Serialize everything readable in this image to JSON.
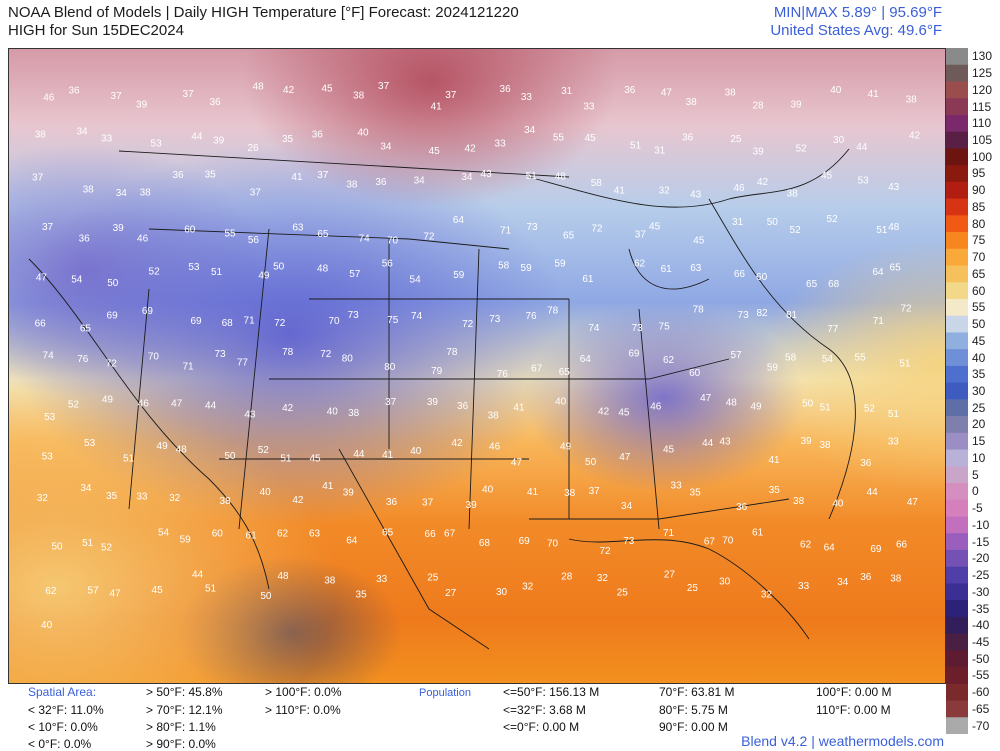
{
  "header": {
    "title": "NOAA Blend of Models | Daily HIGH Temperature [°F] Forecast: 2024121220",
    "subtitle": "HIGH for Sun 15DEC2024",
    "minmax": "MIN|MAX 5.89° | 95.69°F",
    "us_avg": "United States Avg: 49.6°F"
  },
  "colorbar": {
    "ticks": [
      "130",
      "125",
      "120",
      "115",
      "110",
      "105",
      "100",
      "95",
      "90",
      "85",
      "80",
      "75",
      "70",
      "65",
      "60",
      "55",
      "50",
      "45",
      "40",
      "35",
      "30",
      "25",
      "20",
      "15",
      "10",
      "5",
      "0",
      "-5",
      "-10",
      "-15",
      "-20",
      "-25",
      "-30",
      "-35",
      "-40",
      "-45",
      "-50",
      "-55",
      "-60",
      "-65",
      "-70"
    ],
    "colors": [
      "#8a8a8a",
      "#6f5a5a",
      "#9a4d4d",
      "#8a3a55",
      "#7a2a6a",
      "#5a1f44",
      "#6e1410",
      "#8a1a0e",
      "#b11d10",
      "#d63412",
      "#f05a14",
      "#f7861e",
      "#f9a93a",
      "#f6c15c",
      "#f2d889",
      "#f4e9c8",
      "#c9d6e8",
      "#8fb0de",
      "#6f8fd8",
      "#4d70cf",
      "#3e5cc0",
      "#5d6fa6",
      "#7f7fae",
      "#9b8ec4",
      "#b9b2d8",
      "#c9a5c9",
      "#d48ebf",
      "#d67fbd",
      "#c270be",
      "#9a5fbd",
      "#7452b5",
      "#503fa8",
      "#3c2f93",
      "#2c2378",
      "#321e5a",
      "#4a1f44",
      "#5e1c33",
      "#6a1f2a",
      "#7a2a2a",
      "#8a3a3a",
      "#aaaaaa"
    ]
  },
  "stats": {
    "spatial_area_label": "Spatial Area:",
    "lt32": "< 32°F: 11.0%",
    "lt10": "< 10°F: 0.0%",
    "lt0": "< 0°F: 0.0%",
    "gt50": "> 50°F: 45.8%",
    "gt70": "> 70°F: 12.1%",
    "gt80": "> 80°F: 1.1%",
    "gt90": "> 90°F: 0.0%",
    "gt100": "> 100°F: 0.0%",
    "gt110": "> 110°F: 0.0%",
    "population_label": "Population",
    "pop_le50": "<=50°F: 156.13 M",
    "pop_le32": "<=32°F: 3.68 M",
    "pop_le0": "<=0°F: 0.00 M",
    "pop_70": "70°F: 63.81 M",
    "pop_80": "80°F: 5.75 M",
    "pop_90": "90°F: 0.00 M",
    "pop_100": "100°F: 0.00 M",
    "pop_110": "110°F: 0.00 M"
  },
  "footer": "Blend v4.2 | weathermodels.com",
  "temperature_labels": [
    "46",
    "36",
    "37",
    "39",
    "37",
    "36",
    "48",
    "42",
    "45",
    "38",
    "37",
    "41",
    "37",
    "36",
    "33",
    "31",
    "33",
    "36",
    "47",
    "38",
    "38",
    "28",
    "39",
    "40",
    "41",
    "38",
    "38",
    "34",
    "33",
    "53",
    "44",
    "39",
    "26",
    "35",
    "36",
    "40",
    "34",
    "45",
    "42",
    "33",
    "34",
    "55",
    "45",
    "51",
    "31",
    "36",
    "25",
    "39",
    "52",
    "30",
    "44",
    "42",
    "37",
    "38",
    "34",
    "38",
    "36",
    "35",
    "37",
    "41",
    "37",
    "38",
    "36",
    "34",
    "34",
    "43",
    "51",
    "48",
    "58",
    "41",
    "32",
    "43",
    "46",
    "42",
    "38",
    "45",
    "53",
    "43",
    "37",
    "36",
    "39",
    "46",
    "60",
    "55",
    "56",
    "63",
    "65",
    "74",
    "70",
    "72",
    "64",
    "71",
    "73",
    "65",
    "72",
    "37",
    "45",
    "45",
    "31",
    "50",
    "52",
    "52",
    "51",
    "48",
    "47",
    "54",
    "50",
    "52",
    "53",
    "51",
    "49",
    "50",
    "48",
    "57",
    "56",
    "54",
    "59",
    "58",
    "59",
    "59",
    "61",
    "62",
    "61",
    "63",
    "66",
    "60",
    "65",
    "68",
    "64",
    "65",
    "66",
    "65",
    "69",
    "69",
    "69",
    "68",
    "71",
    "72",
    "70",
    "73",
    "75",
    "74",
    "72",
    "73",
    "76",
    "78",
    "74",
    "73",
    "75",
    "78",
    "73",
    "82",
    "81",
    "77",
    "71",
    "72",
    "74",
    "76",
    "72",
    "70",
    "71",
    "73",
    "77",
    "78",
    "72",
    "80",
    "80",
    "79",
    "78",
    "76",
    "67",
    "65",
    "64",
    "69",
    "62",
    "60",
    "57",
    "59",
    "58",
    "54",
    "55",
    "51",
    "53",
    "52",
    "49",
    "46",
    "47",
    "44",
    "43",
    "42",
    "40",
    "38",
    "37",
    "39",
    "36",
    "38",
    "41",
    "40",
    "42",
    "45",
    "46",
    "47",
    "48",
    "49",
    "50",
    "51",
    "52",
    "51",
    "53",
    "53",
    "51",
    "49",
    "48",
    "50",
    "52",
    "51",
    "45",
    "44",
    "41",
    "40",
    "42",
    "46",
    "47",
    "49",
    "50",
    "47",
    "45",
    "44",
    "43",
    "41",
    "39",
    "38",
    "36",
    "33",
    "32",
    "34",
    "35",
    "33",
    "32",
    "38",
    "40",
    "42",
    "41",
    "39",
    "36",
    "37",
    "39",
    "40",
    "41",
    "38",
    "37",
    "34",
    "33",
    "35",
    "36",
    "35",
    "38",
    "40",
    "44",
    "47",
    "50",
    "51",
    "52",
    "54",
    "59",
    "60",
    "61",
    "62",
    "63",
    "64",
    "65",
    "66",
    "67",
    "68",
    "69",
    "70",
    "72",
    "73",
    "71",
    "67",
    "70",
    "61",
    "62",
    "64",
    "69",
    "66",
    "62",
    "57",
    "47",
    "45",
    "44",
    "51",
    "50",
    "48",
    "38",
    "35",
    "33",
    "25",
    "27",
    "30",
    "32",
    "28",
    "32",
    "25",
    "27",
    "25",
    "30",
    "32",
    "33",
    "34",
    "36",
    "38",
    "40"
  ],
  "colors": {
    "accent_blue": "#3a5fd9"
  }
}
